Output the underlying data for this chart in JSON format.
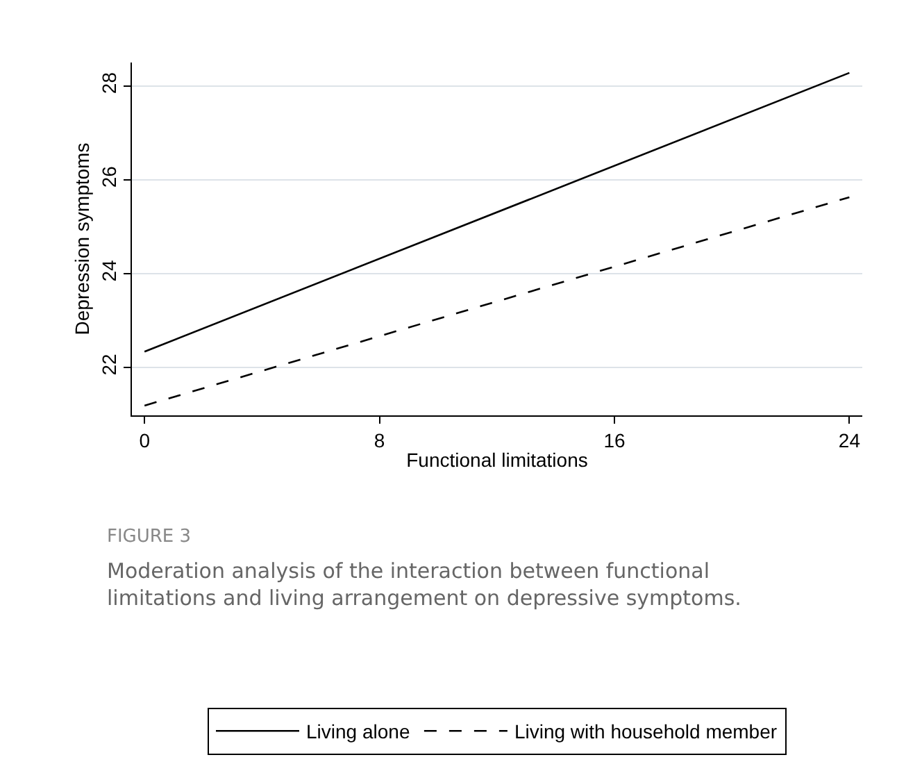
{
  "chart_data": {
    "type": "line",
    "xlabel": "Functional limitations",
    "ylabel": "Depression symptoms",
    "x": [
      0,
      24
    ],
    "series": [
      {
        "name": "Living alone",
        "color": "#000000",
        "values": [
          22.34,
          28.28
        ],
        "line_style": "solid"
      },
      {
        "name": "Living with household member",
        "color": "#000000",
        "values": [
          21.19,
          25.63
        ],
        "line_style": "dashed"
      }
    ],
    "xlim": [
      -0.43,
      24.44
    ],
    "xticks": [
      0,
      8,
      16,
      24
    ],
    "ylim": [
      20.98,
      28.5
    ],
    "yticks": [
      22,
      24,
      26,
      28
    ],
    "grid": "y",
    "legend": "bottom",
    "marker": "none",
    "annotations": [
      "FIGURE 3",
      "Moderation analysis of the interaction between functional limitations and living arrangement on depressive symptoms."
    ]
  }
}
